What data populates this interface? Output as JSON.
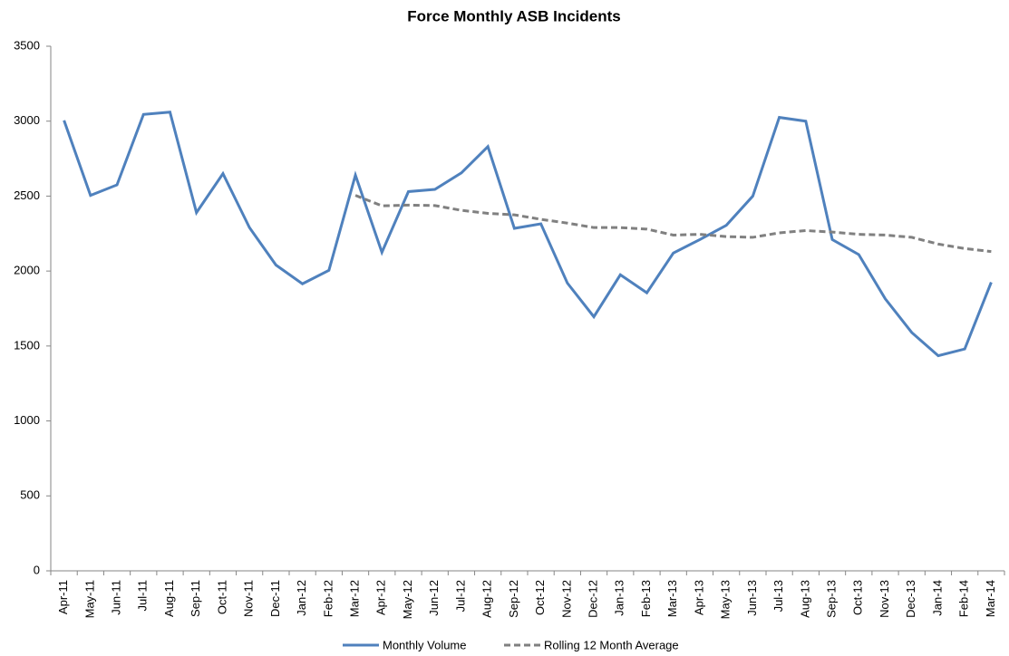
{
  "chart_data": {
    "type": "line",
    "title": "Force Monthly ASB Incidents",
    "categories": [
      "Apr-11",
      "May-11",
      "Jun-11",
      "Jul-11",
      "Aug-11",
      "Sep-11",
      "Oct-11",
      "Nov-11",
      "Dec-11",
      "Jan-12",
      "Feb-12",
      "Mar-12",
      "Apr-12",
      "May-12",
      "Jun-12",
      "Jul-12",
      "Aug-12",
      "Sep-12",
      "Oct-12",
      "Nov-12",
      "Dec-12",
      "Jan-13",
      "Feb-13",
      "Mar-13",
      "Apr-13",
      "May-13",
      "Jun-13",
      "Jul-13",
      "Aug-13",
      "Sep-13",
      "Oct-13",
      "Nov-13",
      "Dec-13",
      "Jan-14",
      "Feb-14",
      "Mar-14"
    ],
    "series": [
      {
        "name": "Monthly Volume",
        "color": "#4f81bd",
        "dashed": false,
        "values": [
          3005,
          2505,
          2575,
          3045,
          3060,
          2390,
          2650,
          2290,
          2040,
          1915,
          2005,
          2640,
          2125,
          2530,
          2545,
          2655,
          2830,
          2285,
          2315,
          1920,
          1695,
          1975,
          1855,
          2120,
          2210,
          2305,
          2500,
          3025,
          3000,
          2210,
          2110,
          1815,
          1590,
          1435,
          1480,
          1925
        ]
      },
      {
        "name": "Rolling 12 Month Average",
        "color": "#808080",
        "dashed": true,
        "values": [
          null,
          null,
          null,
          null,
          null,
          null,
          null,
          null,
          null,
          null,
          null,
          2505,
          2435,
          2440,
          2437,
          2405,
          2385,
          2375,
          2345,
          2320,
          2290,
          2290,
          2280,
          2240,
          2245,
          2230,
          2225,
          2255,
          2270,
          2260,
          2245,
          2240,
          2225,
          2180,
          2150,
          2130
        ]
      }
    ],
    "ylim": [
      0,
      3500
    ],
    "yticks": [
      0,
      500,
      1000,
      1500,
      2000,
      2500,
      3000,
      3500
    ],
    "legend": "bottom"
  }
}
